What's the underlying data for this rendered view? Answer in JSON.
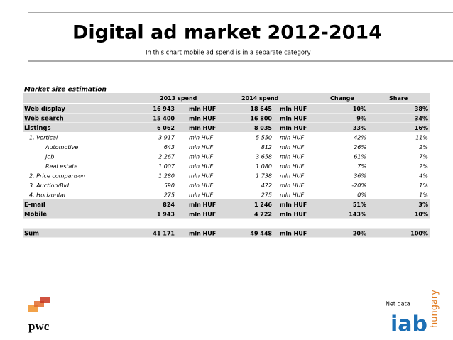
{
  "header": {
    "title": "Digital ad market 2012-2014",
    "subtitle": "In this chart mobile ad spend is in a separate category"
  },
  "table": {
    "caption": "Market size estimation",
    "columns": [
      "2013 spend",
      "2014 spend",
      "Change",
      "Share"
    ],
    "rows": [
      {
        "label": "Web display",
        "level": 0,
        "spend_2013": "16 943",
        "spend_2014": "18 645",
        "unit": "mln HUF",
        "change": "10%",
        "share": "38%"
      },
      {
        "label": "Web search",
        "level": 0,
        "spend_2013": "15 400",
        "spend_2014": "16 800",
        "unit": "mln HUF",
        "change": "9%",
        "share": "34%"
      },
      {
        "label": "Listings",
        "level": 0,
        "spend_2013": "6 062",
        "spend_2014": "8 035",
        "unit": "mln HUF",
        "change": "33%",
        "share": "16%"
      },
      {
        "label": "1. Vertical",
        "level": 1,
        "spend_2013": "3 917",
        "spend_2014": "5 550",
        "unit": "mln HUF",
        "change": "42%",
        "share": "11%"
      },
      {
        "label": "Automotive",
        "level": 2,
        "spend_2013": "643",
        "spend_2014": "812",
        "unit": "mln HUF",
        "change": "26%",
        "share": "2%"
      },
      {
        "label": "Job",
        "level": 2,
        "spend_2013": "2 267",
        "spend_2014": "3 658",
        "unit": "mln HUF",
        "change": "61%",
        "share": "7%"
      },
      {
        "label": "Real estate",
        "level": 2,
        "spend_2013": "1 007",
        "spend_2014": "1 080",
        "unit": "mln HUF",
        "change": "7%",
        "share": "2%"
      },
      {
        "label": "2. Price comparison",
        "level": 1,
        "spend_2013": "1 280",
        "spend_2014": "1 738",
        "unit": "mln HUF",
        "change": "36%",
        "share": "4%"
      },
      {
        "label": "3. Auction/Bid",
        "level": 1,
        "spend_2013": "590",
        "spend_2014": "472",
        "unit": "mln HUF",
        "change": "-20%",
        "share": "1%"
      },
      {
        "label": "4. Horizontal",
        "level": 1,
        "spend_2013": "275",
        "spend_2014": "275",
        "unit": "mln HUF",
        "change": "0%",
        "share": "1%"
      },
      {
        "label": "E-mail",
        "level": 0,
        "spend_2013": "824",
        "spend_2014": "1 246",
        "unit": "mln HUF",
        "change": "51%",
        "share": "3%"
      },
      {
        "label": "Mobile",
        "level": 0,
        "spend_2013": "1 943",
        "spend_2014": "4 722",
        "unit": "mln HUF",
        "change": "143%",
        "share": "10%"
      }
    ],
    "total": {
      "label": "Sum",
      "spend_2013": "41 171",
      "spend_2014": "49 448",
      "unit": "mln HUF",
      "change": "20%",
      "share": "100%"
    }
  },
  "footer": {
    "note": "Net data",
    "logo_left": "pwc",
    "logo_right": "iab",
    "logo_right_sub": "hungary"
  }
}
